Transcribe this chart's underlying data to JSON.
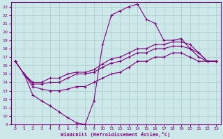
{
  "xlabel": "Windchill (Refroidissement éolien,°C)",
  "bg_color": "#cce8e8",
  "line_color": "#800080",
  "grid_color": "#b0d0d0",
  "xlim": [
    -0.5,
    23.5
  ],
  "ylim": [
    9,
    23.5
  ],
  "xticks": [
    0,
    1,
    2,
    3,
    4,
    5,
    6,
    7,
    8,
    9,
    10,
    11,
    12,
    13,
    14,
    15,
    16,
    17,
    18,
    19,
    20,
    21,
    22,
    23
  ],
  "yticks": [
    9,
    10,
    11,
    12,
    13,
    14,
    15,
    16,
    17,
    18,
    19,
    20,
    21,
    22,
    23
  ],
  "line1_x": [
    0,
    1,
    2,
    3,
    4,
    5,
    6,
    7,
    8,
    9,
    10,
    11,
    12,
    13,
    14,
    15,
    16,
    17,
    18,
    19,
    20,
    21,
    22,
    23
  ],
  "line1_y": [
    16.5,
    15,
    12.5,
    11.8,
    11.2,
    10.5,
    9.8,
    9.2,
    9.0,
    11.8,
    18.5,
    22.0,
    22.5,
    23.0,
    23.3,
    21.5,
    21.0,
    19.0,
    19.0,
    19.2,
    18.0,
    17.5,
    16.5,
    16.5
  ],
  "line2_x": [
    0,
    1,
    2,
    3,
    4,
    5,
    6,
    7,
    8,
    9,
    10,
    11,
    12,
    13,
    14,
    15,
    16,
    17,
    18,
    19,
    20,
    21,
    22,
    23
  ],
  "line2_y": [
    16.5,
    15.0,
    14.0,
    14.0,
    14.5,
    14.5,
    15.0,
    15.2,
    15.2,
    15.5,
    16.2,
    16.8,
    17.0,
    17.5,
    18.0,
    18.0,
    18.5,
    18.5,
    18.8,
    18.8,
    18.5,
    17.5,
    16.5,
    16.5
  ],
  "line3_x": [
    0,
    1,
    2,
    3,
    4,
    5,
    6,
    7,
    8,
    9,
    10,
    11,
    12,
    13,
    14,
    15,
    16,
    17,
    18,
    19,
    20,
    21,
    22,
    23
  ],
  "line3_y": [
    16.5,
    15.0,
    13.8,
    13.8,
    14.0,
    14.0,
    14.5,
    15.0,
    15.0,
    15.2,
    15.8,
    16.3,
    16.5,
    17.0,
    17.5,
    17.5,
    18.0,
    18.0,
    18.3,
    18.3,
    18.0,
    17.0,
    16.5,
    16.5
  ],
  "line4_x": [
    0,
    1,
    2,
    3,
    4,
    5,
    6,
    7,
    8,
    9,
    10,
    11,
    12,
    13,
    14,
    15,
    16,
    17,
    18,
    19,
    20,
    21,
    22,
    23
  ],
  "line4_y": [
    16.5,
    15.0,
    13.5,
    13.2,
    13.0,
    13.0,
    13.2,
    13.5,
    13.5,
    14.0,
    14.5,
    15.0,
    15.2,
    15.8,
    16.5,
    16.5,
    17.0,
    17.0,
    17.5,
    17.5,
    17.0,
    16.5,
    16.5,
    16.5
  ]
}
